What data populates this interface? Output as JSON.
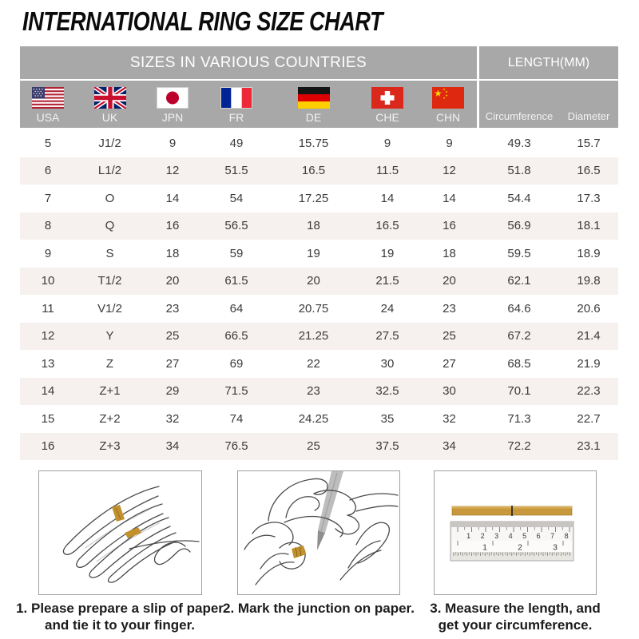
{
  "page": {
    "title": "INTERNATIONAL RING SIZE CHART"
  },
  "table": {
    "group_headers": {
      "sizes": "SIZES IN VARIOUS COUNTRIES",
      "length": "LENGTH(MM)"
    },
    "columns": [
      {
        "code": "USA",
        "flag": "usa-flag-icon"
      },
      {
        "code": "UK",
        "flag": "uk-flag-icon"
      },
      {
        "code": "JPN",
        "flag": "japan-flag-icon"
      },
      {
        "code": "FR",
        "flag": "france-flag-icon"
      },
      {
        "code": "DE",
        "flag": "germany-flag-icon"
      },
      {
        "code": "CHE",
        "flag": "switzerland-flag-icon"
      },
      {
        "code": "CHN",
        "flag": "china-flag-icon"
      }
    ],
    "length_columns": {
      "circumference": "Circumference",
      "diameter": "Diameter"
    },
    "rows": [
      [
        "5",
        "J1/2",
        "9",
        "49",
        "15.75",
        "9",
        "9",
        "49.3",
        "15.7"
      ],
      [
        "6",
        "L1/2",
        "12",
        "51.5",
        "16.5",
        "11.5",
        "12",
        "51.8",
        "16.5"
      ],
      [
        "7",
        "O",
        "14",
        "54",
        "17.25",
        "14",
        "14",
        "54.4",
        "17.3"
      ],
      [
        "8",
        "Q",
        "16",
        "56.5",
        "18",
        "16.5",
        "16",
        "56.9",
        "18.1"
      ],
      [
        "9",
        "S",
        "18",
        "59",
        "19",
        "19",
        "18",
        "59.5",
        "18.9"
      ],
      [
        "10",
        "T1/2",
        "20",
        "61.5",
        "20",
        "21.5",
        "20",
        "62.1",
        "19.8"
      ],
      [
        "11",
        "V1/2",
        "23",
        "64",
        "20.75",
        "24",
        "23",
        "64.6",
        "20.6"
      ],
      [
        "12",
        "Y",
        "25",
        "66.5",
        "21.25",
        "27.5",
        "25",
        "67.2",
        "21.4"
      ],
      [
        "13",
        "Z",
        "27",
        "69",
        "22",
        "30",
        "27",
        "68.5",
        "21.9"
      ],
      [
        "14",
        "Z+1",
        "29",
        "71.5",
        "23",
        "32.5",
        "30",
        "70.1",
        "22.3"
      ],
      [
        "15",
        "Z+2",
        "32",
        "74",
        "24.25",
        "35",
        "32",
        "71.3",
        "22.7"
      ],
      [
        "16",
        "Z+3",
        "34",
        "76.5",
        "25",
        "37.5",
        "34",
        "72.2",
        "23.1"
      ]
    ]
  },
  "instructions": [
    {
      "line1": "1. Please prepare a slip of paper",
      "line2": "and tie it to your finger."
    },
    {
      "line1": "2. Mark the junction on paper.",
      "line2": ""
    },
    {
      "line1": "3. Measure the length, and",
      "line2": "get your circumference."
    }
  ],
  "ruler": {
    "cm_numbers": [
      "1",
      "2",
      "3",
      "4",
      "5",
      "6",
      "7",
      "8"
    ],
    "inch_numbers": [
      "1",
      "2",
      "3"
    ]
  },
  "colors": {
    "header_gray": "#a8a8a8",
    "row_stripe": "#f6f1ee",
    "gold_paper": "#c8993c",
    "text_dark": "#3b3b3b"
  }
}
